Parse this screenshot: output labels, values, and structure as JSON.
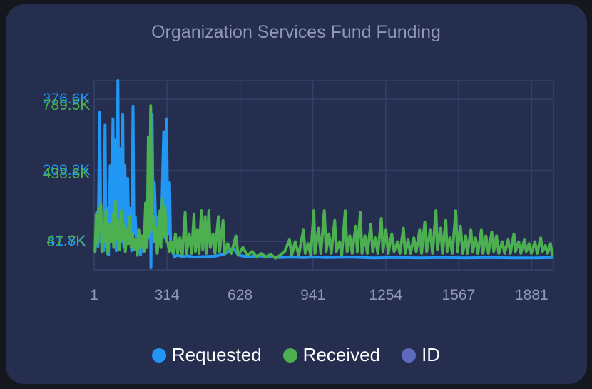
{
  "chart_data": {
    "type": "line",
    "title": "Organization Services Fund Funding",
    "x_tick_labels": [
      "1",
      "314",
      "628",
      "941",
      "1254",
      "1567",
      "1881"
    ],
    "xlim": [
      1,
      1975
    ],
    "grid": true,
    "legend_position": "bottom",
    "y_axes": [
      {
        "series": "Requested",
        "color": "#2196f3",
        "tick_labels": [
          "41.8K",
          "209.2K",
          "376.6K"
        ],
        "ticks": [
          41800,
          209200,
          376600
        ],
        "ylim": [
          -25000,
          420000
        ]
      },
      {
        "series": "Received",
        "color": "#4caf50",
        "tick_labels": [
          "87.7K",
          "438.6K",
          "789.5K"
        ],
        "ticks": [
          87700,
          438600,
          789500
        ],
        "ylim": [
          -55000,
          920000
        ]
      }
    ],
    "series": [
      {
        "name": "Requested",
        "color": "#2196f3",
        "points": [
          [
            5,
            20000
          ],
          [
            12,
            110000
          ],
          [
            18,
            30000
          ],
          [
            25,
            345000
          ],
          [
            30,
            40000
          ],
          [
            35,
            80000
          ],
          [
            42,
            20000
          ],
          [
            48,
            315000
          ],
          [
            52,
            30000
          ],
          [
            58,
            120000
          ],
          [
            63,
            10000
          ],
          [
            70,
            220000
          ],
          [
            75,
            60000
          ],
          [
            82,
            330000
          ],
          [
            86,
            80000
          ],
          [
            92,
            280000
          ],
          [
            96,
            20000
          ],
          [
            103,
            420000
          ],
          [
            107,
            60000
          ],
          [
            113,
            260000
          ],
          [
            118,
            40000
          ],
          [
            124,
            340000
          ],
          [
            128,
            30000
          ],
          [
            133,
            220000
          ],
          [
            138,
            60000
          ],
          [
            145,
            190000
          ],
          [
            150,
            50000
          ],
          [
            157,
            120000
          ],
          [
            162,
            20000
          ],
          [
            168,
            360000
          ],
          [
            172,
            60000
          ],
          [
            178,
            100000
          ],
          [
            185,
            20000
          ],
          [
            192,
            60000
          ],
          [
            200,
            10000
          ],
          [
            210,
            40000
          ],
          [
            218,
            20000
          ],
          [
            228,
            100000
          ],
          [
            235,
            50000
          ],
          [
            242,
            160000
          ],
          [
            245,
            -20000
          ],
          [
            250,
            340000
          ],
          [
            255,
            80000
          ],
          [
            260,
            180000
          ],
          [
            268,
            40000
          ],
          [
            275,
            100000
          ],
          [
            282,
            40000
          ],
          [
            290,
            80000
          ],
          [
            300,
            300000
          ],
          [
            305,
            50000
          ],
          [
            312,
            330000
          ],
          [
            318,
            60000
          ],
          [
            325,
            180000
          ],
          [
            330,
            20000
          ],
          [
            336,
            40000
          ],
          [
            345,
            5000
          ],
          [
            360,
            10000
          ],
          [
            380,
            5000
          ],
          [
            400,
            8000
          ],
          [
            430,
            5000
          ],
          [
            470,
            6000
          ],
          [
            520,
            7000
          ],
          [
            560,
            12000
          ],
          [
            600,
            25000
          ],
          [
            620,
            10000
          ],
          [
            660,
            5000
          ],
          [
            700,
            8000
          ],
          [
            750,
            6000
          ],
          [
            800,
            4000
          ],
          [
            850,
            5000
          ],
          [
            900,
            4000
          ],
          [
            950,
            5000
          ],
          [
            1000,
            4000
          ],
          [
            1100,
            5000
          ],
          [
            1200,
            3000
          ],
          [
            1300,
            4000
          ],
          [
            1400,
            3000
          ],
          [
            1500,
            4000
          ],
          [
            1600,
            3000
          ],
          [
            1700,
            4000
          ],
          [
            1800,
            3000
          ],
          [
            1900,
            3000
          ],
          [
            1970,
            4000
          ]
        ]
      },
      {
        "name": "Received",
        "color": "#4caf50",
        "points": [
          [
            5,
            40000
          ],
          [
            10,
            230000
          ],
          [
            15,
            80000
          ],
          [
            20,
            260000
          ],
          [
            25,
            150000
          ],
          [
            30,
            280000
          ],
          [
            34,
            40000
          ],
          [
            40,
            170000
          ],
          [
            45,
            90000
          ],
          [
            52,
            250000
          ],
          [
            58,
            30000
          ],
          [
            65,
            180000
          ],
          [
            72,
            90000
          ],
          [
            80,
            230000
          ],
          [
            85,
            60000
          ],
          [
            92,
            300000
          ],
          [
            98,
            100000
          ],
          [
            105,
            200000
          ],
          [
            110,
            50000
          ],
          [
            118,
            250000
          ],
          [
            124,
            100000
          ],
          [
            130,
            180000
          ],
          [
            135,
            40000
          ],
          [
            142,
            150000
          ],
          [
            148,
            80000
          ],
          [
            155,
            220000
          ],
          [
            160,
            60000
          ],
          [
            166,
            130000
          ],
          [
            172,
            50000
          ],
          [
            180,
            100000
          ],
          [
            186,
            20000
          ],
          [
            193,
            150000
          ],
          [
            200,
            60000
          ],
          [
            208,
            120000
          ],
          [
            215,
            40000
          ],
          [
            222,
            290000
          ],
          [
            228,
            60000
          ],
          [
            234,
            630000
          ],
          [
            238,
            120000
          ],
          [
            244,
            790000
          ],
          [
            248,
            150000
          ],
          [
            254,
            220000
          ],
          [
            260,
            90000
          ],
          [
            266,
            160000
          ],
          [
            272,
            30000
          ],
          [
            278,
            120000
          ],
          [
            284,
            250000
          ],
          [
            288,
            60000
          ],
          [
            294,
            310000
          ],
          [
            300,
            120000
          ],
          [
            305,
            270000
          ],
          [
            312,
            100000
          ],
          [
            318,
            80000
          ],
          [
            325,
            40000
          ],
          [
            332,
            90000
          ],
          [
            340,
            30000
          ],
          [
            350,
            130000
          ],
          [
            360,
            30000
          ],
          [
            370,
            110000
          ],
          [
            380,
            20000
          ],
          [
            392,
            240000
          ],
          [
            398,
            30000
          ],
          [
            410,
            130000
          ],
          [
            420,
            30000
          ],
          [
            430,
            230000
          ],
          [
            436,
            40000
          ],
          [
            445,
            150000
          ],
          [
            452,
            30000
          ],
          [
            462,
            250000
          ],
          [
            468,
            50000
          ],
          [
            478,
            220000
          ],
          [
            484,
            30000
          ],
          [
            494,
            250000
          ],
          [
            500,
            60000
          ],
          [
            512,
            130000
          ],
          [
            520,
            30000
          ],
          [
            535,
            220000
          ],
          [
            540,
            40000
          ],
          [
            555,
            200000
          ],
          [
            562,
            30000
          ],
          [
            575,
            80000
          ],
          [
            590,
            30000
          ],
          [
            610,
            120000
          ],
          [
            620,
            20000
          ],
          [
            640,
            60000
          ],
          [
            660,
            20000
          ],
          [
            680,
            40000
          ],
          [
            700,
            10000
          ],
          [
            720,
            30000
          ],
          [
            740,
            10000
          ],
          [
            760,
            25000
          ],
          [
            780,
            5000
          ],
          [
            800,
            20000
          ],
          [
            820,
            40000
          ],
          [
            840,
            100000
          ],
          [
            850,
            20000
          ],
          [
            865,
            90000
          ],
          [
            880,
            20000
          ],
          [
            900,
            150000
          ],
          [
            908,
            30000
          ],
          [
            920,
            80000
          ],
          [
            932,
            20000
          ],
          [
            945,
            250000
          ],
          [
            950,
            30000
          ],
          [
            965,
            160000
          ],
          [
            975,
            30000
          ],
          [
            990,
            250000
          ],
          [
            998,
            40000
          ],
          [
            1010,
            130000
          ],
          [
            1020,
            30000
          ],
          [
            1035,
            200000
          ],
          [
            1042,
            40000
          ],
          [
            1055,
            90000
          ],
          [
            1065,
            20000
          ],
          [
            1080,
            250000
          ],
          [
            1088,
            40000
          ],
          [
            1100,
            120000
          ],
          [
            1110,
            30000
          ],
          [
            1125,
            170000
          ],
          [
            1132,
            40000
          ],
          [
            1145,
            240000
          ],
          [
            1152,
            30000
          ],
          [
            1165,
            120000
          ],
          [
            1175,
            30000
          ],
          [
            1190,
            180000
          ],
          [
            1198,
            40000
          ],
          [
            1210,
            110000
          ],
          [
            1220,
            30000
          ],
          [
            1235,
            210000
          ],
          [
            1242,
            40000
          ],
          [
            1255,
            150000
          ],
          [
            1265,
            30000
          ],
          [
            1280,
            130000
          ],
          [
            1290,
            40000
          ],
          [
            1305,
            90000
          ],
          [
            1315,
            30000
          ],
          [
            1330,
            160000
          ],
          [
            1338,
            30000
          ],
          [
            1350,
            100000
          ],
          [
            1360,
            30000
          ],
          [
            1375,
            110000
          ],
          [
            1385,
            40000
          ],
          [
            1400,
            150000
          ],
          [
            1408,
            30000
          ],
          [
            1422,
            190000
          ],
          [
            1430,
            40000
          ],
          [
            1445,
            150000
          ],
          [
            1455,
            30000
          ],
          [
            1470,
            250000
          ],
          [
            1476,
            50000
          ],
          [
            1490,
            160000
          ],
          [
            1498,
            30000
          ],
          [
            1512,
            200000
          ],
          [
            1518,
            40000
          ],
          [
            1530,
            110000
          ],
          [
            1540,
            30000
          ],
          [
            1555,
            250000
          ],
          [
            1562,
            40000
          ],
          [
            1575,
            170000
          ],
          [
            1585,
            30000
          ],
          [
            1598,
            120000
          ],
          [
            1605,
            30000
          ],
          [
            1620,
            150000
          ],
          [
            1628,
            40000
          ],
          [
            1640,
            110000
          ],
          [
            1650,
            30000
          ],
          [
            1665,
            150000
          ],
          [
            1672,
            30000
          ],
          [
            1685,
            120000
          ],
          [
            1695,
            30000
          ],
          [
            1710,
            140000
          ],
          [
            1718,
            40000
          ],
          [
            1730,
            120000
          ],
          [
            1740,
            30000
          ],
          [
            1755,
            90000
          ],
          [
            1765,
            30000
          ],
          [
            1780,
            100000
          ],
          [
            1790,
            30000
          ],
          [
            1805,
            130000
          ],
          [
            1812,
            40000
          ],
          [
            1825,
            90000
          ],
          [
            1835,
            30000
          ],
          [
            1850,
            100000
          ],
          [
            1858,
            40000
          ],
          [
            1870,
            80000
          ],
          [
            1880,
            30000
          ],
          [
            1895,
            90000
          ],
          [
            1905,
            30000
          ],
          [
            1920,
            110000
          ],
          [
            1928,
            40000
          ],
          [
            1940,
            70000
          ],
          [
            1950,
            30000
          ],
          [
            1962,
            80000
          ],
          [
            1970,
            20000
          ]
        ]
      }
    ]
  },
  "legend": [
    {
      "label": "Requested",
      "color": "#2196f3"
    },
    {
      "label": "Received",
      "color": "#4caf50"
    },
    {
      "label": "ID",
      "color": "#5c6bc0"
    }
  ]
}
